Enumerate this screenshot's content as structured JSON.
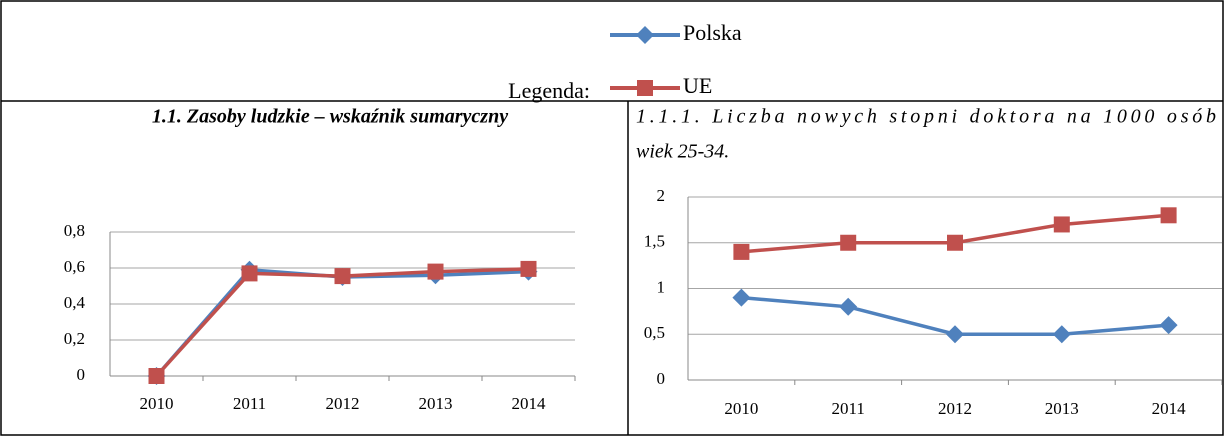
{
  "legend": {
    "label": "Legenda:"
  },
  "chart_data": [
    {
      "type": "line",
      "title": "1.1. Zasoby ludzkie – wskaźnik sumaryczny",
      "categories": [
        "2010",
        "2011",
        "2012",
        "2013",
        "2014"
      ],
      "series": [
        {
          "name": "Polska",
          "color": "#4f81bd",
          "values": [
            0,
            0.59,
            0.55,
            0.56,
            0.58
          ]
        },
        {
          "name": "UE",
          "color": "#c0504d",
          "values": [
            0,
            0.57,
            0.555,
            0.58,
            0.595
          ]
        }
      ],
      "ylim": [
        0,
        0.8
      ],
      "yticks": [
        0,
        {
          "value": 0.2,
          "label": "0,2"
        },
        {
          "value": 0.4,
          "label": "0,4"
        },
        {
          "value": 0.6,
          "label": "0,6"
        },
        {
          "value": 0.8,
          "label": "0,8"
        }
      ],
      "grid": true
    },
    {
      "type": "line",
      "title": [
        "1.1.1. Liczba nowych stopni doktora na 1000 osób",
        "wiek 25-34."
      ],
      "categories": [
        "2010",
        "2011",
        "2012",
        "2013",
        "2014"
      ],
      "series": [
        {
          "color": "#4f81bd",
          "values": [
            0.9,
            0.8,
            0.5,
            0.5,
            0.6
          ]
        },
        {
          "color": "#c0504d",
          "values": [
            1.4,
            1.5,
            1.5,
            1.7,
            1.8
          ]
        }
      ],
      "ylim": [
        0,
        2
      ],
      "yticks": [
        0,
        {
          "value": 0.5,
          "label": "0,5"
        },
        1,
        {
          "value": 1.5,
          "label": "1,5"
        },
        2
      ],
      "grid": true
    }
  ]
}
